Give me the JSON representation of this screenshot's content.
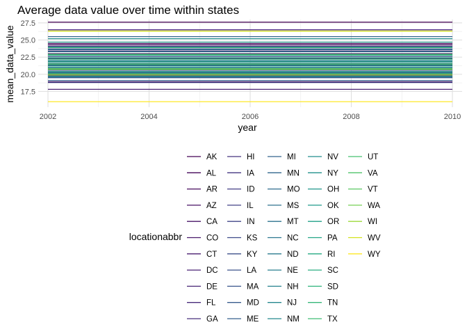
{
  "chart_data": {
    "type": "line",
    "title": "Average data value over time within states",
    "xlabel": "year",
    "ylabel": "mean_data_value",
    "xlim": [
      2002,
      2010
    ],
    "ylim": [
      15.2,
      28.0
    ],
    "x_ticks": [
      2002,
      2004,
      2006,
      2008,
      2010
    ],
    "y_ticks": [
      17.5,
      20.0,
      22.5,
      25.0,
      27.5
    ],
    "x_tick_labels": [
      "2002",
      "2004",
      "2006",
      "2008",
      "2010"
    ],
    "y_tick_labels": [
      "17.5",
      "20.0",
      "22.5",
      "25.0",
      "27.5"
    ],
    "grid": true,
    "legend_title": "locationabbr",
    "legend_position": "bottom",
    "series": [
      {
        "name": "AK",
        "color": "#440154",
        "values": [
          [
            2002,
            27.6
          ],
          [
            2010,
            27.6
          ]
        ]
      },
      {
        "name": "AL",
        "color": "#450559",
        "values": [
          [
            2002,
            24.5
          ],
          [
            2010,
            24.5
          ]
        ]
      },
      {
        "name": "AR",
        "color": "#460a5d",
        "values": [
          [
            2002,
            24.3
          ],
          [
            2010,
            24.3
          ]
        ]
      },
      {
        "name": "AZ",
        "color": "#470f62",
        "values": [
          [
            2002,
            23.0
          ],
          [
            2010,
            23.0
          ]
        ]
      },
      {
        "name": "CA",
        "color": "#481467",
        "values": [
          [
            2002,
            22.3
          ],
          [
            2010,
            22.3
          ]
        ]
      },
      {
        "name": "CO",
        "color": "#48186a",
        "values": [
          [
            2002,
            18.9
          ],
          [
            2010,
            18.9
          ]
        ]
      },
      {
        "name": "CT",
        "color": "#481d6f",
        "values": [
          [
            2002,
            21.3
          ],
          [
            2010,
            21.3
          ]
        ]
      },
      {
        "name": "DC",
        "color": "#482173",
        "values": [
          [
            2002,
            17.8
          ],
          [
            2010,
            17.8
          ]
        ]
      },
      {
        "name": "DE",
        "color": "#482576",
        "values": [
          [
            2002,
            26.5
          ],
          [
            2010,
            26.5
          ]
        ]
      },
      {
        "name": "FL",
        "color": "#472a7a",
        "values": [
          [
            2002,
            23.4
          ],
          [
            2010,
            23.4
          ]
        ]
      },
      {
        "name": "GA",
        "color": "#472e7c",
        "values": [
          [
            2002,
            20.0
          ],
          [
            2010,
            20.0
          ]
        ]
      },
      {
        "name": "HI",
        "color": "#46337f",
        "values": [
          [
            2002,
            24.1
          ],
          [
            2010,
            24.1
          ]
        ]
      },
      {
        "name": "IA",
        "color": "#453781",
        "values": [
          [
            2002,
            19.8
          ],
          [
            2010,
            19.8
          ]
        ]
      },
      {
        "name": "ID",
        "color": "#433e85",
        "values": [
          [
            2002,
            18.8
          ],
          [
            2010,
            18.8
          ]
        ]
      },
      {
        "name": "IL",
        "color": "#424186",
        "values": [
          [
            2002,
            20.6
          ],
          [
            2010,
            20.6
          ]
        ]
      },
      {
        "name": "IN",
        "color": "#404688",
        "values": [
          [
            2002,
            23.9
          ],
          [
            2010,
            23.9
          ]
        ]
      },
      {
        "name": "KS",
        "color": "#3e4989",
        "values": [
          [
            2002,
            20.3
          ],
          [
            2010,
            20.3
          ]
        ]
      },
      {
        "name": "KY",
        "color": "#3c4f8a",
        "values": [
          [
            2002,
            23.7
          ],
          [
            2010,
            23.7
          ]
        ]
      },
      {
        "name": "LA",
        "color": "#3b528b",
        "values": [
          [
            2002,
            22.6
          ],
          [
            2010,
            22.6
          ]
        ]
      },
      {
        "name": "MA",
        "color": "#39568c",
        "values": [
          [
            2002,
            19.5
          ],
          [
            2010,
            19.5
          ]
        ]
      },
      {
        "name": "MD",
        "color": "#375b8d",
        "values": [
          [
            2002,
            19.1
          ],
          [
            2010,
            19.1
          ]
        ]
      },
      {
        "name": "ME",
        "color": "#355f8d",
        "values": [
          [
            2002,
            21.9
          ],
          [
            2010,
            21.9
          ]
        ]
      },
      {
        "name": "MI",
        "color": "#33638d",
        "values": [
          [
            2002,
            25.5
          ],
          [
            2010,
            25.5
          ]
        ]
      },
      {
        "name": "MN",
        "color": "#31668e",
        "values": [
          [
            2002,
            19.6
          ],
          [
            2010,
            19.6
          ]
        ]
      },
      {
        "name": "MO",
        "color": "#2f6b8e",
        "values": [
          [
            2002,
            24.0
          ],
          [
            2010,
            24.0
          ]
        ]
      },
      {
        "name": "MS",
        "color": "#2d708e",
        "values": [
          [
            2002,
            23.6
          ],
          [
            2009,
            23.6
          ],
          [
            2010,
            23.6
          ]
        ]
      },
      {
        "name": "MT",
        "color": "#2c728e",
        "values": [
          [
            2002,
            21.6
          ],
          [
            2010,
            21.6
          ]
        ]
      },
      {
        "name": "NC",
        "color": "#2a768e",
        "values": [
          [
            2002,
            23.3
          ],
          [
            2010,
            23.3
          ]
        ]
      },
      {
        "name": "ND",
        "color": "#297a8e",
        "values": [
          [
            2002,
            21.0
          ],
          [
            2010,
            21.0
          ]
        ]
      },
      {
        "name": "NE",
        "color": "#277e8e",
        "values": [
          [
            2002,
            20.2
          ],
          [
            2010,
            20.2
          ]
        ]
      },
      {
        "name": "NH",
        "color": "#26828e",
        "values": [
          [
            2002,
            20.9
          ],
          [
            2010,
            20.9
          ]
        ]
      },
      {
        "name": "NJ",
        "color": "#24868e",
        "values": [
          [
            2002,
            19.7
          ],
          [
            2010,
            19.7
          ]
        ]
      },
      {
        "name": "NM",
        "color": "#23898e",
        "values": [
          [
            2002,
            22.0
          ],
          [
            2010,
            22.0
          ]
        ]
      },
      {
        "name": "NV",
        "color": "#218e8d",
        "values": [
          [
            2002,
            25.2
          ],
          [
            2010,
            25.2
          ]
        ]
      },
      {
        "name": "NY",
        "color": "#20928c",
        "values": [
          [
            2002,
            21.4
          ],
          [
            2010,
            21.4
          ]
        ]
      },
      {
        "name": "OH",
        "color": "#1f968b",
        "values": [
          [
            2002,
            20.4
          ],
          [
            2010,
            20.4
          ]
        ]
      },
      {
        "name": "OK",
        "color": "#1f9a8a",
        "values": [
          [
            2002,
            24.7
          ],
          [
            2010,
            24.7
          ]
        ]
      },
      {
        "name": "OR",
        "color": "#1fa188",
        "values": [
          [
            2002,
            21.2
          ],
          [
            2010,
            21.2
          ]
        ]
      },
      {
        "name": "PA",
        "color": "#21a585",
        "values": [
          [
            2002,
            22.4
          ],
          [
            2010,
            22.4
          ]
        ]
      },
      {
        "name": "RI",
        "color": "#24aa83",
        "values": [
          [
            2002,
            21.8
          ],
          [
            2010,
            21.8
          ]
        ]
      },
      {
        "name": "SC",
        "color": "#28ae80",
        "values": [
          [
            2002,
            22.8
          ],
          [
            2010,
            22.8
          ]
        ]
      },
      {
        "name": "SD",
        "color": "#2eb37c",
        "values": [
          [
            2002,
            22.2
          ],
          [
            2010,
            22.2
          ]
        ]
      },
      {
        "name": "TN",
        "color": "#35b779",
        "values": [
          [
            2002,
            23.9
          ],
          [
            2010,
            23.9
          ]
        ]
      },
      {
        "name": "TX",
        "color": "#3dbc74",
        "values": [
          [
            2002,
            22.9
          ],
          [
            2010,
            22.9
          ]
        ]
      },
      {
        "name": "UT",
        "color": "#46c06f",
        "values": [
          [
            2002,
            20.1
          ],
          [
            2010,
            20.1
          ]
        ]
      },
      {
        "name": "VA",
        "color": "#50c46a",
        "values": [
          [
            2002,
            21.5
          ],
          [
            2010,
            21.5
          ]
        ]
      },
      {
        "name": "VT",
        "color": "#5ac864",
        "values": [
          [
            2002,
            20.7
          ],
          [
            2010,
            20.7
          ]
        ]
      },
      {
        "name": "WA",
        "color": "#75d054",
        "values": [
          [
            2002,
            20.8
          ],
          [
            2010,
            20.8
          ]
        ]
      },
      {
        "name": "WI",
        "color": "#9dd93b",
        "values": [
          [
            2002,
            19.9
          ],
          [
            2010,
            19.9
          ]
        ]
      },
      {
        "name": "WV",
        "color": "#d2e21b",
        "values": [
          [
            2002,
            26.3
          ],
          [
            2010,
            26.3
          ]
        ]
      },
      {
        "name": "WY",
        "color": "#fde725",
        "values": [
          [
            2002,
            16.0
          ],
          [
            2010,
            16.0
          ]
        ]
      }
    ]
  }
}
